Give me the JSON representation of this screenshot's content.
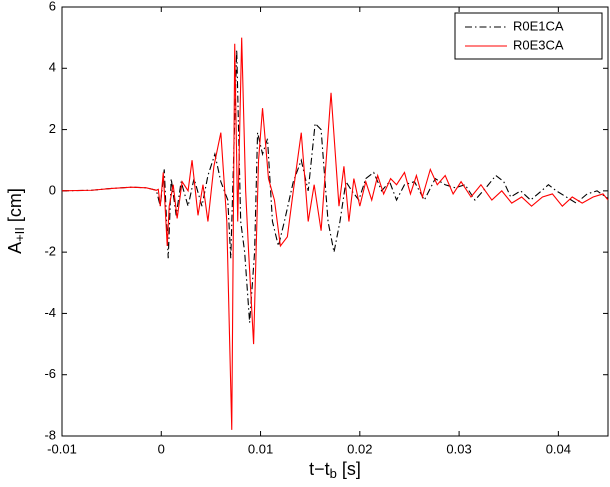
{
  "chart_data": {
    "type": "line",
    "xlabel": {
      "base": "t−t",
      "sub": "b",
      "rest": " [s]"
    },
    "ylabel": {
      "base": "A",
      "sub": "+II",
      "rest": " [cm]"
    },
    "xlim": [
      -0.01,
      0.045
    ],
    "ylim": [
      -8,
      6
    ],
    "xticks": [
      -0.01,
      0,
      0.01,
      0.02,
      0.03,
      0.04
    ],
    "yticks": [
      -8,
      -6,
      -4,
      -2,
      0,
      2,
      4,
      6
    ],
    "grid": false,
    "legend": "northeast",
    "series": [
      {
        "name": "R0E1CA",
        "color": "#000000",
        "style": "dashdot",
        "x": [
          -0.01,
          -0.007,
          -0.005,
          -0.003,
          -0.0015,
          -0.0005,
          -0.0001,
          0.0003,
          0.0007,
          0.001,
          0.0015,
          0.002,
          0.0027,
          0.0033,
          0.0041,
          0.0047,
          0.0054,
          0.006,
          0.0067,
          0.007,
          0.0076,
          0.008,
          0.0084,
          0.0089,
          0.0094,
          0.0097,
          0.0102,
          0.0107,
          0.0112,
          0.0118,
          0.0124,
          0.0133,
          0.0141,
          0.0148,
          0.0155,
          0.0161,
          0.0168,
          0.0174,
          0.018,
          0.0186,
          0.0192,
          0.0199,
          0.0206,
          0.0214,
          0.0222,
          0.023,
          0.0237,
          0.0245,
          0.0255,
          0.0265,
          0.0276,
          0.0286,
          0.0296,
          0.0306,
          0.0316,
          0.0327,
          0.0337,
          0.0345,
          0.0352,
          0.0362,
          0.0372,
          0.0383,
          0.039,
          0.0398,
          0.0408,
          0.0418,
          0.0429,
          0.0439,
          0.045
        ],
        "values": [
          0,
          0.02,
          0.08,
          0.12,
          0.1,
          0.02,
          -0.5,
          0.7,
          -2.2,
          0.4,
          -0.8,
          0.3,
          -0.5,
          0.4,
          -0.5,
          0.5,
          1.2,
          0.3,
          -0.3,
          -2.2,
          4.6,
          -1,
          -2,
          -4.3,
          -2,
          1.9,
          1.2,
          1.7,
          -1.0,
          -1.8,
          -1.0,
          0.3,
          1.0,
          0,
          2.2,
          2.0,
          -1.0,
          -2.0,
          -1.0,
          0.3,
          0,
          -0.3,
          0.4,
          0.6,
          0,
          0.3,
          -0.3,
          0.2,
          0.3,
          -0.3,
          0.4,
          0.2,
          0.1,
          0.2,
          -0.3,
          0.1,
          0.5,
          0.3,
          -0.2,
          0,
          -0.3,
          0,
          0.2,
          0,
          -0.2,
          -0.4,
          -0.1,
          0,
          -0.25
        ]
      },
      {
        "name": "R0E3CA",
        "color": "#ff0000",
        "style": "solid",
        "x": [
          -0.01,
          -0.007,
          -0.005,
          -0.003,
          -0.0015,
          -0.0005,
          -0.0003,
          -0.0001,
          0.0002,
          0.0006,
          0.0008,
          0.0012,
          0.0016,
          0.0021,
          0.0027,
          0.0031,
          0.0037,
          0.0042,
          0.0047,
          0.0053,
          0.006,
          0.0066,
          0.0071,
          0.0074,
          0.0077,
          0.0081,
          0.0085,
          0.0088,
          0.0093,
          0.0098,
          0.0102,
          0.0108,
          0.0114,
          0.012,
          0.0127,
          0.0133,
          0.0141,
          0.0148,
          0.0154,
          0.0161,
          0.0171,
          0.0179,
          0.0184,
          0.0189,
          0.0194,
          0.02,
          0.0206,
          0.0212,
          0.0218,
          0.0224,
          0.0231,
          0.0237,
          0.0245,
          0.0251,
          0.0257,
          0.0263,
          0.0271,
          0.0278,
          0.0286,
          0.0294,
          0.0302,
          0.0312,
          0.0322,
          0.0333,
          0.0343,
          0.0353,
          0.0363,
          0.0373,
          0.0384,
          0.0394,
          0.0404,
          0.0414,
          0.0424,
          0.0435,
          0.0445,
          0.045
        ],
        "values": [
          0,
          0.02,
          0.08,
          0.12,
          0.1,
          0.02,
          0.05,
          -0.5,
          0.6,
          -1.8,
          -0.5,
          0.2,
          -0.9,
          0.3,
          0,
          1.0,
          -0.8,
          0.2,
          -1.0,
          0.8,
          1.9,
          -1.0,
          -7.8,
          4.8,
          -1.0,
          5.0,
          0,
          -2.0,
          -5.0,
          1.0,
          2.7,
          0.4,
          -0.3,
          -1.8,
          -1.5,
          0,
          1.9,
          -1.0,
          0.2,
          -1.3,
          3.2,
          -0.5,
          0.8,
          -1.0,
          0.4,
          -0.5,
          0.3,
          -0.3,
          0.5,
          -0.1,
          0.4,
          0.2,
          0.6,
          -0.1,
          0.5,
          -0.2,
          0.7,
          0.2,
          0.5,
          -0.1,
          0.3,
          -0.2,
          0.2,
          -0.3,
          0,
          -0.4,
          -0.2,
          -0.5,
          -0.2,
          -0.1,
          -0.5,
          -0.2,
          -0.4,
          -0.2,
          -0.1,
          -0.3
        ]
      }
    ]
  }
}
